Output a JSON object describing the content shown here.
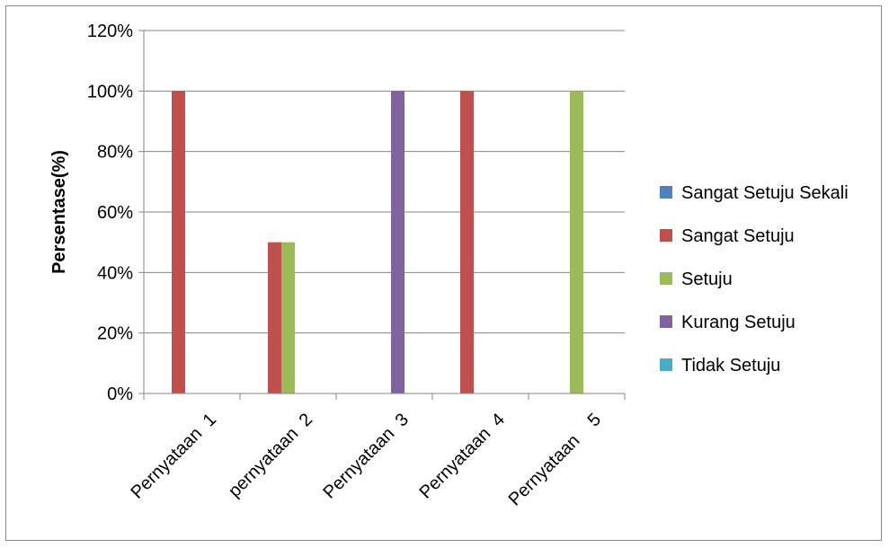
{
  "chart_data": {
    "type": "bar",
    "title": "",
    "xlabel": "",
    "ylabel": "Persentase(%)",
    "ylim": [
      0,
      120
    ],
    "y_ticks": [
      "0%",
      "20%",
      "40%",
      "60%",
      "80%",
      "100%",
      "120%"
    ],
    "y_tick_values": [
      0,
      20,
      40,
      60,
      80,
      100,
      120
    ],
    "grid": true,
    "legend_position": "right",
    "categories": [
      "Pernyataan  1",
      "pernyataan  2",
      "Pernyataan  3",
      "Pernyataan  4",
      "Pernyataan    5"
    ],
    "series": [
      {
        "name": "Sangat Setuju Sekali",
        "color": "#4f81bd",
        "values": [
          0,
          0,
          0,
          0,
          0
        ]
      },
      {
        "name": "Sangat Setuju",
        "color": "#c0504d",
        "values": [
          100,
          50,
          0,
          100,
          0
        ]
      },
      {
        "name": "Setuju",
        "color": "#9bbb59",
        "values": [
          0,
          50,
          0,
          0,
          100
        ]
      },
      {
        "name": "Kurang Setuju",
        "color": "#8064a2",
        "values": [
          0,
          0,
          100,
          0,
          0
        ]
      },
      {
        "name": "Tidak Setuju",
        "color": "#4bacc6",
        "values": [
          0,
          0,
          0,
          0,
          0
        ]
      }
    ]
  }
}
